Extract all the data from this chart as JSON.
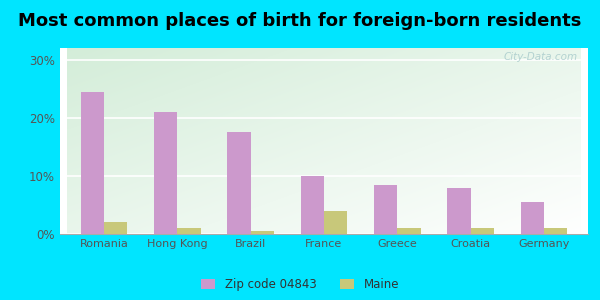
{
  "title": "Most common places of birth for foreign-born residents",
  "categories": [
    "Romania",
    "Hong Kong",
    "Brazil",
    "France",
    "Greece",
    "Croatia",
    "Germany"
  ],
  "zip_values": [
    24.5,
    21.0,
    17.5,
    10.0,
    8.5,
    8.0,
    5.5
  ],
  "maine_values": [
    2.0,
    1.0,
    0.5,
    4.0,
    1.0,
    1.0,
    1.0
  ],
  "zip_color": "#cc99cc",
  "maine_color": "#c8c87a",
  "yticks": [
    0,
    10,
    20,
    30
  ],
  "ylim": [
    0,
    32
  ],
  "background_outer": "#00e5ff",
  "legend_zip": "Zip code 04843",
  "legend_maine": "Maine",
  "watermark": "City-Data.com",
  "bar_width": 0.32,
  "title_fontsize": 13
}
